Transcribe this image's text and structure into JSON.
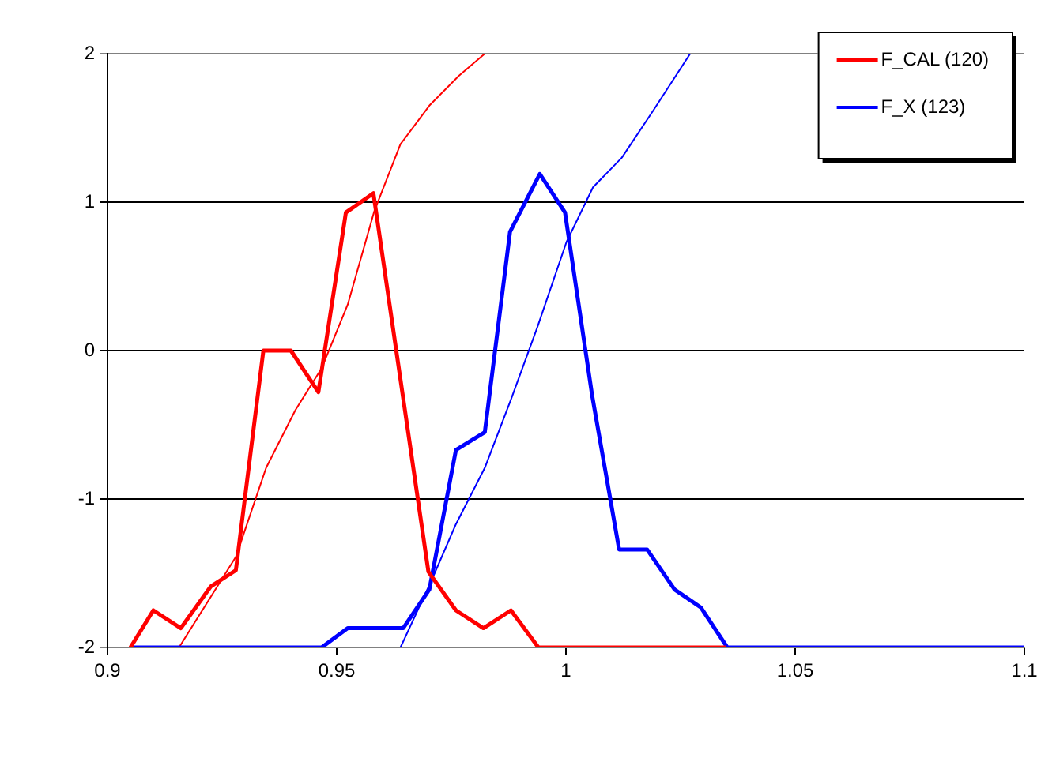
{
  "chart_data": {
    "type": "line",
    "xlim": [
      0.9,
      1.1
    ],
    "xticks": [
      0.9,
      0.95,
      1,
      1.05,
      1.1
    ],
    "ylim": [
      -2,
      2
    ],
    "yticks": [
      -2,
      -1,
      0,
      1,
      2
    ],
    "grid": "y",
    "legend": "top right",
    "marker": "none",
    "line_style": "solid",
    "series": [
      {
        "name": "F_CAL (120)",
        "color": "#ff0000",
        "x": [
          0.905,
          0.91,
          0.916,
          0.9225,
          0.928,
          0.934,
          0.94,
          0.946,
          0.952,
          0.958,
          0.97,
          0.976,
          0.982,
          0.988,
          0.994,
          1.035
        ],
        "values": [
          -2,
          -1.75,
          -1.87,
          -1.59,
          -1.48,
          0,
          0,
          -0.28,
          0.93,
          1.06,
          -1.49,
          -1.75,
          -1.87,
          -1.75,
          -2,
          -2
        ]
      },
      {
        "name": "F_X (123)",
        "color": "#0000ff",
        "x": [
          0.905,
          0.9467,
          0.9524,
          0.9645,
          0.9702,
          0.976,
          0.9823,
          0.9878,
          0.9943,
          0.9998,
          1.0057,
          1.0116,
          1.0177,
          1.0237,
          1.0294,
          1.0352,
          1.1
        ],
        "values": [
          -2,
          -2,
          -1.87,
          -1.87,
          -1.61,
          -0.67,
          -0.55,
          0.8,
          1.19,
          0.93,
          -0.3,
          -1.34,
          -1.34,
          -1.61,
          -1.73,
          -2,
          -2
        ]
      },
      {
        "color": "#ff0000",
        "x": [
          0.9156,
          0.928,
          0.9346,
          0.941,
          0.9467,
          0.9524,
          0.9582,
          0.9639,
          0.9702,
          0.9766,
          0.9823
        ],
        "values": [
          -2,
          -1.39,
          -0.79,
          -0.4,
          -0.12,
          0.31,
          0.94,
          1.39,
          1.65,
          1.85,
          2
        ]
      },
      {
        "color": "#0000ff",
        "x": [
          0.9639,
          0.9708,
          0.976,
          0.9823,
          0.988,
          0.9938,
          1.0001,
          1.0059,
          1.0122,
          1.0191,
          1.0271
        ],
        "values": [
          -2,
          -1.54,
          -1.17,
          -0.79,
          -0.33,
          0.16,
          0.73,
          1.1,
          1.3,
          1.62,
          2
        ]
      }
    ]
  }
}
